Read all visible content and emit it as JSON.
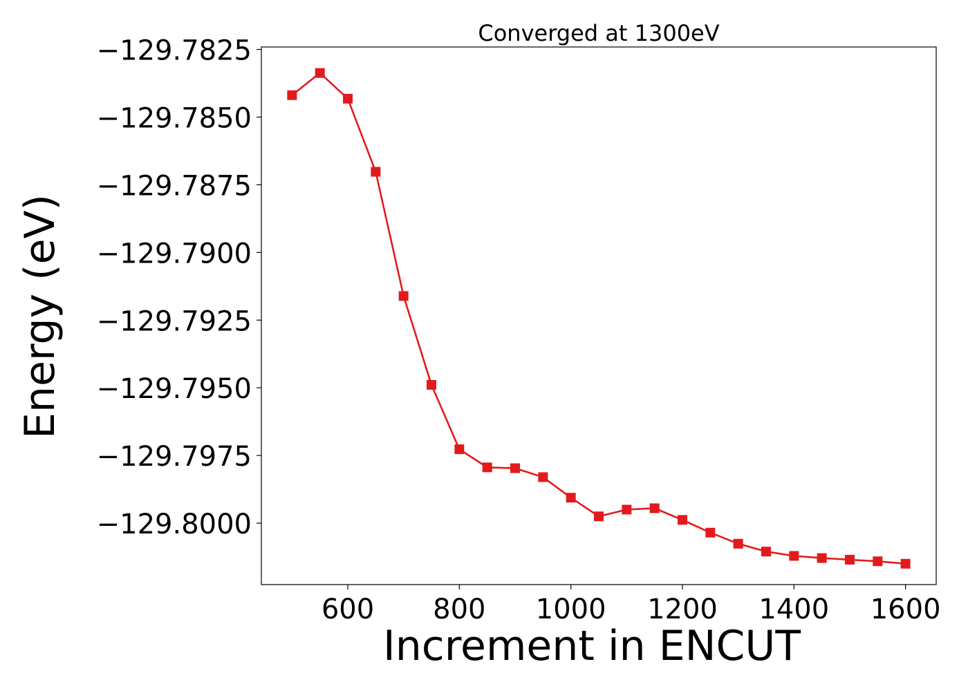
{
  "chart_data": {
    "type": "line",
    "title": "Converged at 1300eV",
    "xlabel": "Increment in ENCUT",
    "ylabel": "Energy (eV)",
    "xlim": [
      445,
      1655
    ],
    "ylim": [
      -129.80227,
      -129.78241
    ],
    "x_ticks": [
      600,
      800,
      1000,
      1200,
      1400,
      1600
    ],
    "x_tick_labels": [
      "600",
      "800",
      "1000",
      "1200",
      "1400",
      "1600"
    ],
    "y_ticks": [
      -129.7825,
      -129.785,
      -129.7875,
      -129.79,
      -129.7925,
      -129.795,
      -129.7975,
      -129.8
    ],
    "y_tick_labels": [
      "−129.7825",
      "−129.7850",
      "−129.7875",
      "−129.7900",
      "−129.7925",
      "−129.7950",
      "−129.7975",
      "−129.8000"
    ],
    "grid": false,
    "series": [
      {
        "color": "#e31a1c",
        "marker": "square",
        "x": [
          500,
          550,
          600,
          650,
          700,
          750,
          800,
          850,
          900,
          950,
          1000,
          1050,
          1100,
          1150,
          1200,
          1250,
          1300,
          1350,
          1400,
          1450,
          1500,
          1550,
          1600
        ],
        "y": [
          -129.78419,
          -129.78337,
          -129.78432,
          -129.78702,
          -129.79161,
          -129.79489,
          -129.79727,
          -129.79794,
          -129.79797,
          -129.7983,
          -129.79906,
          -129.79975,
          -129.7995,
          -129.79945,
          -129.79988,
          -129.80035,
          -129.80076,
          -129.80105,
          -129.80121,
          -129.80129,
          -129.80135,
          -129.80141,
          -129.8015
        ]
      }
    ]
  }
}
